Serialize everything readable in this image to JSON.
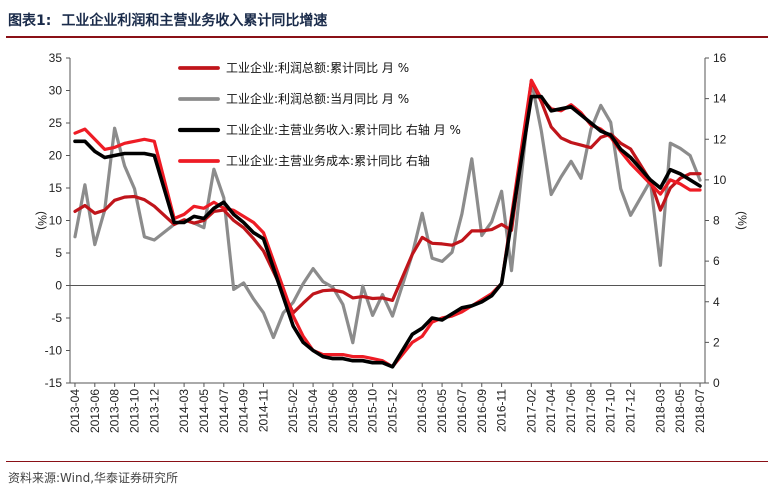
{
  "header": {
    "figure_no": "图表1:",
    "title": "工业企业利润和主营业务收入累计同比增速"
  },
  "source": "资料来源:Wind,华泰证券研究所",
  "chart_data": {
    "type": "line",
    "x": [
      "2013-04",
      "2013-05",
      "2013-06",
      "2013-07",
      "2013-08",
      "2013-09",
      "2013-10",
      "2013-11",
      "2013-12",
      "2014-01",
      "2014-02",
      "2014-03",
      "2014-04",
      "2014-05",
      "2014-06",
      "2014-07",
      "2014-08",
      "2014-09",
      "2014-10",
      "2014-11",
      "2014-12",
      "2015-01",
      "2015-02",
      "2015-03",
      "2015-04",
      "2015-05",
      "2015-06",
      "2015-07",
      "2015-08",
      "2015-09",
      "2015-10",
      "2015-11",
      "2015-12",
      "2016-01",
      "2016-02",
      "2016-03",
      "2016-04",
      "2016-05",
      "2016-06",
      "2016-07",
      "2016-08",
      "2016-09",
      "2016-10",
      "2016-11",
      "2016-12",
      "2017-01",
      "2017-02",
      "2017-03",
      "2017-04",
      "2017-05",
      "2017-06",
      "2017-07",
      "2017-08",
      "2017-09",
      "2017-10",
      "2017-11",
      "2017-12",
      "2018-01",
      "2018-02",
      "2018-03",
      "2018-04",
      "2018-05",
      "2018-06",
      "2018-07"
    ],
    "x_tick_labels": [
      "2013-04",
      "2013-06",
      "2013-08",
      "2013-10",
      "2013-12",
      "2014-03",
      "2014-05",
      "2014-07",
      "2014-09",
      "2014-11",
      "2015-02",
      "2015-04",
      "2015-06",
      "2015-08",
      "2015-10",
      "2015-12",
      "2016-03",
      "2016-05",
      "2016-07",
      "2016-09",
      "2016-11",
      "2017-02",
      "2017-04",
      "2017-06",
      "2017-08",
      "2017-10",
      "2017-12",
      "2018-03",
      "2018-05",
      "2018-07"
    ],
    "y_left": {
      "label": "(%)",
      "ylim": [
        -15,
        35
      ],
      "ticks": [
        -15,
        -10,
        -5,
        0,
        5,
        10,
        15,
        20,
        25,
        30,
        35
      ]
    },
    "y_right": {
      "label": "(%)",
      "ylim": [
        0,
        16
      ],
      "ticks": [
        0,
        2,
        4,
        6,
        8,
        10,
        12,
        14,
        16
      ]
    },
    "grid": false,
    "legend_position": "top-center",
    "series": [
      {
        "name": "工业企业:利润总额:累计同比  月  %",
        "axis": "left",
        "color": "#c0151b",
        "width": 3.2,
        "values": [
          11.4,
          12.3,
          11.1,
          11.6,
          13.1,
          13.6,
          13.7,
          13.2,
          12.2,
          null,
          9.4,
          10.1,
          9.6,
          10.0,
          11.4,
          11.6,
          10.0,
          8.9,
          7.2,
          5.3,
          null,
          null,
          -4.2,
          -2.7,
          -1.3,
          -0.8,
          -0.7,
          -1.0,
          -1.9,
          -1.7,
          -2.0,
          -1.9,
          -2.3,
          null,
          4.8,
          7.4,
          6.5,
          6.4,
          6.2,
          6.9,
          8.4,
          8.4,
          8.6,
          9.4,
          8.5,
          null,
          31.5,
          28.3,
          24.4,
          22.7,
          22.0,
          21.6,
          21.2,
          22.8,
          23.3,
          21.9,
          21.0,
          null,
          16.1,
          11.6,
          15.0,
          16.5,
          17.2,
          17.2
        ]
      },
      {
        "name": "工业企业:利润总额:当月同比  月  %",
        "axis": "left",
        "color": "#8c8c8c",
        "width": 3.2,
        "values": [
          7.5,
          15.5,
          6.3,
          11.6,
          24.2,
          18.4,
          14.9,
          7.5,
          7.0,
          null,
          9.4,
          10.1,
          9.6,
          8.9,
          17.9,
          13.5,
          -0.6,
          0.4,
          -2.1,
          -4.2,
          -8.0,
          -4.2,
          -2.6,
          0.3,
          2.6,
          0.6,
          -0.3,
          -2.9,
          -8.8,
          -0.1,
          -4.6,
          -1.4,
          -4.7,
          null,
          4.8,
          11.1,
          4.2,
          3.7,
          5.1,
          11.0,
          19.5,
          7.7,
          9.8,
          14.5,
          2.3,
          null,
          31.5,
          23.8,
          14.0,
          16.7,
          19.1,
          16.5,
          24.0,
          27.7,
          25.1,
          14.9,
          10.8,
          null,
          16.1,
          3.1,
          21.9,
          21.1,
          20.0,
          16.2
        ]
      },
      {
        "name": "工业企业:主营业务收入:累计同比  右轴  月  %",
        "axis": "right",
        "color": "#000000",
        "width": 3.6,
        "values": [
          11.9,
          11.9,
          11.4,
          11.1,
          11.2,
          11.3,
          11.3,
          11.3,
          11.2,
          null,
          7.9,
          7.9,
          8.2,
          8.1,
          8.6,
          8.9,
          8.3,
          7.9,
          7.4,
          7.1,
          null,
          null,
          2.8,
          2.0,
          1.6,
          1.3,
          1.2,
          1.2,
          1.1,
          1.1,
          1.0,
          1.0,
          0.8,
          null,
          2.4,
          2.7,
          3.2,
          3.1,
          3.4,
          3.7,
          3.8,
          4.0,
          4.3,
          4.9,
          null,
          null,
          14.1,
          14.1,
          13.4,
          13.5,
          13.6,
          13.2,
          12.8,
          12.4,
          12.2,
          11.5,
          11.1,
          null,
          10.0,
          9.6,
          10.5,
          10.3,
          10.0,
          9.7
        ]
      },
      {
        "name": "工业企业:主营业务成本:累计同比  右轴",
        "axis": "right",
        "color": "#ee1c25",
        "width": 3.2,
        "values": [
          12.3,
          12.5,
          12.0,
          11.5,
          11.6,
          11.8,
          11.9,
          12.0,
          11.9,
          null,
          8.1,
          8.3,
          8.7,
          8.6,
          8.9,
          8.6,
          8.5,
          8.2,
          7.9,
          7.4,
          null,
          null,
          3.3,
          2.3,
          1.6,
          1.4,
          1.4,
          1.4,
          1.3,
          1.3,
          1.2,
          1.1,
          0.8,
          null,
          2.0,
          2.3,
          3.0,
          3.2,
          3.3,
          3.5,
          3.8,
          4.1,
          4.4,
          4.9,
          null,
          null,
          14.9,
          14.0,
          13.5,
          13.4,
          13.7,
          13.3,
          12.7,
          12.5,
          12.1,
          11.4,
          10.8,
          null,
          9.8,
          9.3,
          10.0,
          9.8,
          9.5,
          9.5
        ]
      }
    ]
  }
}
